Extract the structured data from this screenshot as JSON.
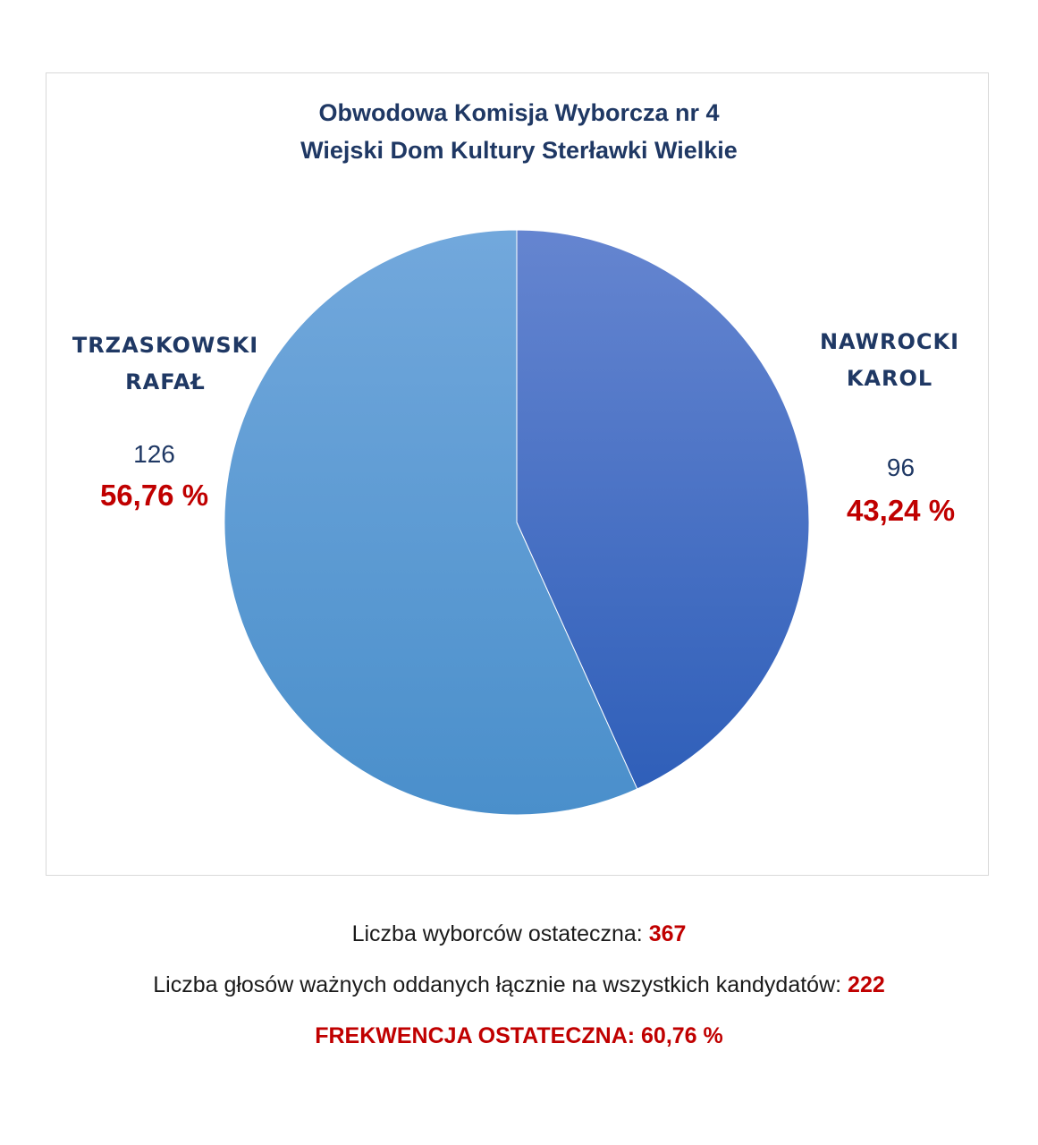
{
  "chart_data": {
    "type": "pie",
    "title": "Obwodowa Komisja Wyborcza nr 4",
    "subtitle": "Wiejski Dom Kultury Sterławki Wielkie",
    "slices": [
      {
        "label_line1": "NAWROCKI",
        "label_line2": "KAROL",
        "value": 96,
        "percent_label": "43,24 %",
        "color": "#3f6fcb"
      },
      {
        "label_line1": "TRZASKOWSKI",
        "label_line2": "RAFAŁ",
        "value": 126,
        "percent_label": "56,76 %",
        "color": "#5b9bd5"
      }
    ]
  },
  "footer": {
    "voters_label": "Liczba wyborców ostateczna:",
    "voters_value": "367",
    "valid_votes_label": "Liczba głosów ważnych oddanych łącznie na wszystkich kandydatów:",
    "valid_votes_value": "222",
    "turnout": "FREKWENCJA OSTATECZNA: 60,76 %"
  }
}
